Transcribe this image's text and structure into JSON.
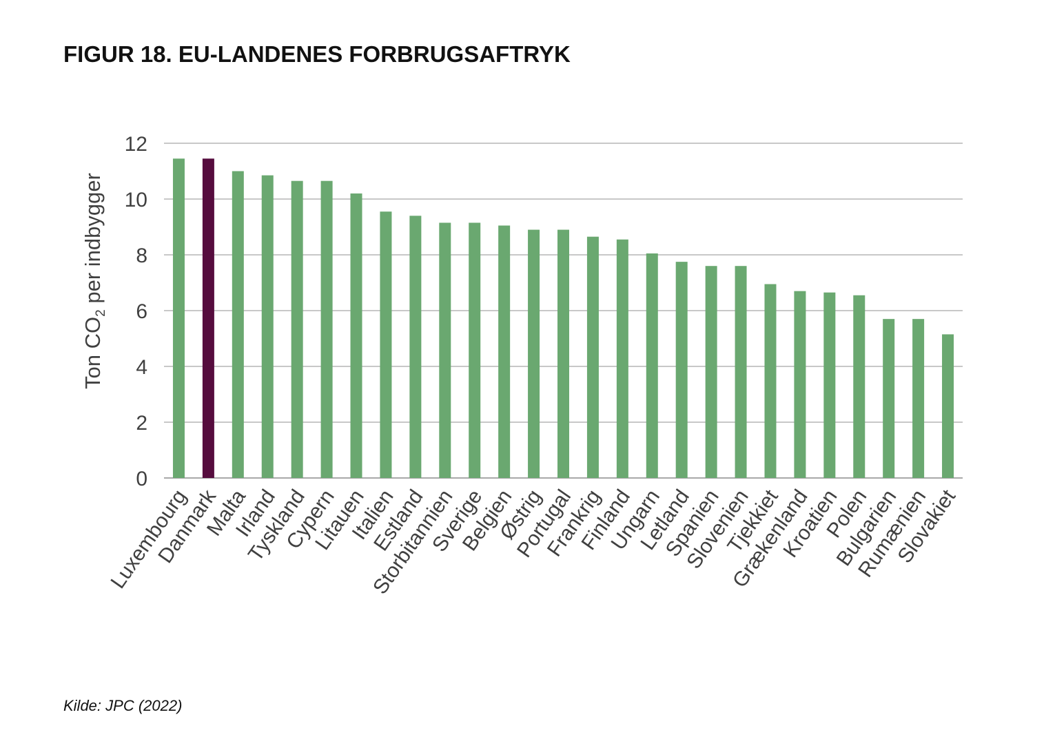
{
  "figure": {
    "title": "FIGUR 18. EU-LANDENES FORBRUGSAFTRYK",
    "source": "Kilde: JPC (2022)"
  },
  "chart_data": {
    "type": "bar",
    "ylabel_main": "Ton CO",
    "ylabel_sub": "2",
    "ylabel_rest": " per indbygger",
    "ylim": [
      0,
      12
    ],
    "yticks": [
      "0",
      "2",
      "4",
      "6",
      "8",
      "10",
      "12"
    ],
    "grid": true,
    "categories": [
      "Luxembourg",
      "Danmark",
      "Malta",
      "Irland",
      "Tyskland",
      "Cypern",
      "Litauen",
      "Italien",
      "Estland",
      "Storbitannien",
      "Sverige",
      "Belgien",
      "Østrig",
      "Portugal",
      "Frankrig",
      "Finland",
      "Ungarn",
      "Letland",
      "Spanien",
      "Slovenien",
      "Tjekkiet",
      "Grækenland",
      "Kroatien",
      "Polen",
      "Bulgarien",
      "Rumænien",
      "Slovakiet"
    ],
    "values": [
      11.45,
      11.45,
      11.0,
      10.85,
      10.65,
      10.65,
      10.2,
      9.55,
      9.4,
      9.15,
      9.15,
      9.05,
      8.9,
      8.9,
      8.65,
      8.55,
      8.05,
      7.75,
      7.6,
      7.6,
      6.95,
      6.7,
      6.65,
      6.55,
      5.7,
      5.7,
      5.15
    ],
    "highlight_index": 1,
    "colors": {
      "bar": "#6aa870",
      "highlight": "#560c3e",
      "grid": "#a6a6a6",
      "text": "#404040"
    }
  }
}
